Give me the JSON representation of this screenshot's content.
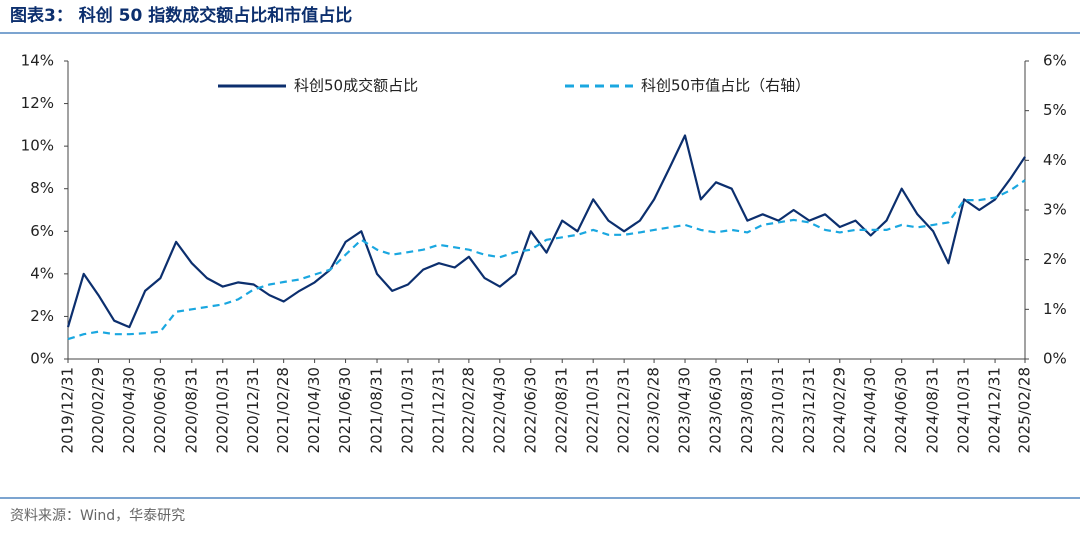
{
  "chart_data": {
    "type": "line",
    "title": "图表3：  科创 50 指数成交额占比和市值占比",
    "source": "资料来源：Wind，华泰研究",
    "x": [
      "2019/12/31",
      "2020/01/31",
      "2020/02/29",
      "2020/03/31",
      "2020/04/30",
      "2020/05/31",
      "2020/06/30",
      "2020/07/31",
      "2020/08/31",
      "2020/09/30",
      "2020/10/31",
      "2020/11/30",
      "2020/12/31",
      "2021/01/31",
      "2021/02/28",
      "2021/03/31",
      "2021/04/30",
      "2021/05/31",
      "2021/06/30",
      "2021/07/31",
      "2021/08/31",
      "2021/09/30",
      "2021/10/31",
      "2021/11/30",
      "2021/12/31",
      "2022/01/31",
      "2022/02/28",
      "2022/03/31",
      "2022/04/30",
      "2022/05/31",
      "2022/06/30",
      "2022/07/31",
      "2022/08/31",
      "2022/09/30",
      "2022/10/31",
      "2022/11/30",
      "2022/12/31",
      "2023/01/31",
      "2023/02/28",
      "2023/03/31",
      "2023/04/30",
      "2023/05/31",
      "2023/06/30",
      "2023/07/31",
      "2023/08/31",
      "2023/09/30",
      "2023/10/31",
      "2023/11/30",
      "2023/12/31",
      "2024/01/31",
      "2024/02/29",
      "2024/03/31",
      "2024/04/30",
      "2024/05/31",
      "2024/06/30",
      "2024/07/31",
      "2024/08/31",
      "2024/09/30",
      "2024/10/31",
      "2024/11/30",
      "2024/12/31",
      "2025/01/31",
      "2025/02/28"
    ],
    "xlim": [
      "2019/12/31",
      "2025/02/28"
    ],
    "xticks": [
      "2019/12/31",
      "2020/02/29",
      "2020/04/30",
      "2020/06/30",
      "2020/08/31",
      "2020/10/31",
      "2020/12/31",
      "2021/02/28",
      "2021/04/30",
      "2021/06/30",
      "2021/08/31",
      "2021/10/31",
      "2021/12/31",
      "2022/02/28",
      "2022/04/30",
      "2022/06/30",
      "2022/08/31",
      "2022/10/31",
      "2022/12/31",
      "2023/02/28",
      "2023/04/30",
      "2023/06/30",
      "2023/08/31",
      "2023/10/31",
      "2023/12/31",
      "2024/02/29",
      "2024/04/30",
      "2024/06/30",
      "2024/08/31",
      "2024/10/31",
      "2024/12/31",
      "2025/02/28"
    ],
    "ylim": [
      0,
      14
    ],
    "yticks": [
      {
        "value": 0,
        "label": "0%"
      },
      {
        "value": 2,
        "label": "2%"
      },
      {
        "value": 4,
        "label": "4%"
      },
      {
        "value": 6,
        "label": "6%"
      },
      {
        "value": 8,
        "label": "8%"
      },
      {
        "value": 10,
        "label": "10%"
      },
      {
        "value": 12,
        "label": "12%"
      },
      {
        "value": 14,
        "label": "14%"
      }
    ],
    "y2lim": [
      0,
      6
    ],
    "y2ticks": [
      {
        "value": 0,
        "label": "0%"
      },
      {
        "value": 1,
        "label": "1%"
      },
      {
        "value": 2,
        "label": "2%"
      },
      {
        "value": 3,
        "label": "3%"
      },
      {
        "value": 4,
        "label": "4%"
      },
      {
        "value": 5,
        "label": "5%"
      },
      {
        "value": 6,
        "label": "6%"
      }
    ],
    "series": [
      {
        "name": "科创50成交额占比",
        "color": "#0c2f6e",
        "style": "solid",
        "values": [
          1.5,
          4.0,
          3.0,
          1.8,
          1.5,
          3.2,
          3.8,
          5.5,
          4.5,
          3.8,
          3.4,
          3.6,
          3.5,
          3.0,
          2.7,
          3.2,
          3.6,
          4.2,
          5.5,
          6.0,
          4.0,
          3.2,
          3.5,
          4.2,
          4.5,
          4.3,
          4.8,
          3.8,
          3.4,
          4.0,
          6.0,
          5.0,
          6.5,
          6.0,
          7.5,
          6.5,
          6.0,
          6.5,
          7.5,
          9.0,
          10.5,
          7.5,
          8.3,
          8.0,
          6.5,
          6.8,
          6.5,
          7.0,
          6.5,
          6.8,
          6.2,
          6.5,
          5.8,
          6.5,
          8.0,
          6.8,
          6.0,
          4.5,
          7.5,
          7.0,
          7.5,
          8.5,
          9.5
        ]
      },
      {
        "name": "科创50市值占比（右轴）",
        "color": "#1aa7e0",
        "style": "dashed",
        "axis": "y2",
        "values": [
          0.4,
          0.5,
          0.55,
          0.5,
          0.5,
          0.52,
          0.55,
          0.95,
          1.0,
          1.05,
          1.1,
          1.2,
          1.4,
          1.5,
          1.55,
          1.6,
          1.7,
          1.8,
          2.1,
          2.4,
          2.2,
          2.1,
          2.15,
          2.2,
          2.3,
          2.25,
          2.2,
          2.1,
          2.05,
          2.15,
          2.2,
          2.4,
          2.45,
          2.5,
          2.6,
          2.5,
          2.5,
          2.55,
          2.6,
          2.65,
          2.7,
          2.6,
          2.55,
          2.6,
          2.55,
          2.7,
          2.75,
          2.8,
          2.75,
          2.6,
          2.55,
          2.6,
          2.6,
          2.6,
          2.7,
          2.65,
          2.7,
          2.75,
          3.2,
          3.2,
          3.25,
          3.4,
          3.6
        ]
      }
    ]
  }
}
